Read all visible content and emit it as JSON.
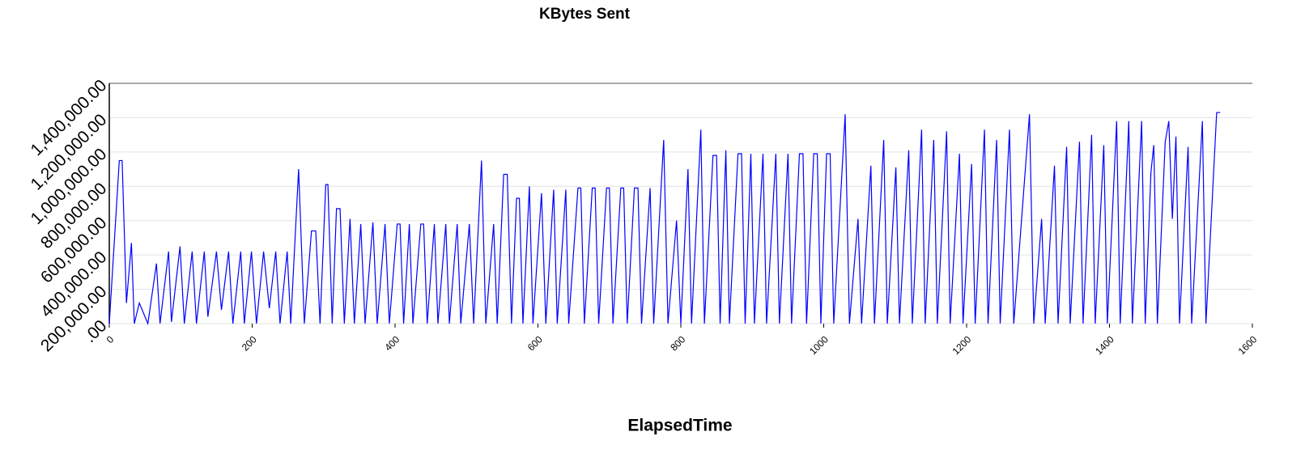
{
  "chart_data": {
    "type": "line",
    "title": "KBytes Sent",
    "x_label": "ElapsedTime",
    "color": "#0000ff",
    "grid": true,
    "xlim": [
      0,
      1600
    ],
    "xticks": [
      0,
      200,
      400,
      600,
      800,
      1000,
      1200,
      1400,
      1600
    ],
    "ylim": [
      0,
      1400000
    ],
    "yticks": [
      {
        "value": 0,
        "label": ".00"
      },
      {
        "value": 200000,
        "label": "200,000.00"
      },
      {
        "value": 400000,
        "label": "400,000.00"
      },
      {
        "value": 600000,
        "label": "600,000.00"
      },
      {
        "value": 800000,
        "label": "800,000.00"
      },
      {
        "value": 1000000,
        "label": "1,000,000.00"
      },
      {
        "value": 1200000,
        "label": "1,200,000.00"
      },
      {
        "value": 1400000,
        "label": "1,400,000.00"
      }
    ],
    "x": [
      0,
      14,
      18,
      24,
      31,
      35,
      42,
      54,
      66,
      71,
      83,
      87,
      99,
      105,
      116,
      122,
      133,
      138,
      150,
      157,
      167,
      173,
      184,
      189,
      199,
      206,
      216,
      224,
      233,
      239,
      249,
      254,
      265,
      273,
      283,
      289,
      295,
      303,
      306,
      312,
      318,
      323,
      329,
      337,
      343,
      352,
      358,
      369,
      375,
      386,
      392,
      403,
      407,
      412,
      420,
      425,
      436,
      440,
      445,
      455,
      460,
      471,
      476,
      487,
      492,
      504,
      510,
      521,
      527,
      538,
      543,
      552,
      557,
      563,
      570,
      574,
      579,
      588,
      593,
      605,
      611,
      622,
      627,
      639,
      643,
      656,
      660,
      665,
      676,
      680,
      685,
      696,
      700,
      705,
      716,
      720,
      725,
      735,
      740,
      745,
      757,
      762,
      776,
      782,
      794,
      800,
      810,
      815,
      828,
      833,
      845,
      850,
      855,
      863,
      868,
      880,
      885,
      890,
      898,
      903,
      915,
      920,
      933,
      938,
      950,
      955,
      966,
      971,
      976,
      986,
      991,
      996,
      1004,
      1009,
      1014,
      1030,
      1036,
      1048,
      1053,
      1066,
      1071,
      1084,
      1089,
      1101,
      1106,
      1119,
      1124,
      1137,
      1142,
      1154,
      1159,
      1172,
      1177,
      1190,
      1195,
      1207,
      1212,
      1225,
      1230,
      1242,
      1247,
      1260,
      1266,
      1288,
      1294,
      1305,
      1310,
      1323,
      1328,
      1340,
      1345,
      1358,
      1363,
      1375,
      1380,
      1392,
      1397,
      1410,
      1415,
      1427,
      1432,
      1445,
      1450,
      1458,
      1462,
      1467,
      1478,
      1483,
      1488,
      1493,
      1498,
      1510,
      1515,
      1530,
      1535,
      1550,
      1555
    ],
    "values": [
      0,
      950000,
      950000,
      120000,
      470000,
      0,
      120000,
      0,
      350000,
      0,
      420000,
      10000,
      450000,
      0,
      420000,
      0,
      420000,
      40000,
      420000,
      80000,
      420000,
      0,
      420000,
      0,
      420000,
      0,
      420000,
      90000,
      420000,
      0,
      420000,
      0,
      900000,
      0,
      540000,
      540000,
      0,
      810000,
      810000,
      0,
      670000,
      670000,
      0,
      610000,
      0,
      580000,
      0,
      590000,
      0,
      580000,
      0,
      580000,
      580000,
      0,
      580000,
      0,
      580000,
      580000,
      0,
      580000,
      0,
      580000,
      0,
      580000,
      0,
      580000,
      0,
      950000,
      0,
      580000,
      0,
      870000,
      870000,
      0,
      730000,
      730000,
      0,
      800000,
      0,
      760000,
      0,
      780000,
      0,
      780000,
      0,
      790000,
      790000,
      0,
      790000,
      790000,
      0,
      790000,
      790000,
      0,
      790000,
      790000,
      0,
      790000,
      790000,
      0,
      790000,
      0,
      1070000,
      0,
      600000,
      0,
      900000,
      0,
      1130000,
      0,
      980000,
      980000,
      0,
      1010000,
      0,
      990000,
      990000,
      0,
      990000,
      0,
      990000,
      0,
      990000,
      0,
      990000,
      0,
      990000,
      990000,
      0,
      990000,
      990000,
      0,
      990000,
      990000,
      0,
      1220000,
      0,
      610000,
      0,
      920000,
      0,
      1070000,
      0,
      910000,
      0,
      1010000,
      0,
      1130000,
      0,
      1070000,
      0,
      1120000,
      0,
      990000,
      0,
      930000,
      0,
      1130000,
      0,
      1070000,
      0,
      1130000,
      0,
      1220000,
      0,
      610000,
      0,
      920000,
      0,
      1030000,
      0,
      1060000,
      0,
      1100000,
      0,
      1040000,
      0,
      1180000,
      0,
      1180000,
      0,
      1180000,
      0,
      880000,
      1040000,
      0,
      1060000,
      1180000,
      610000,
      1090000,
      0,
      1030000,
      0,
      1180000,
      0,
      1230000,
      1230000
    ]
  }
}
